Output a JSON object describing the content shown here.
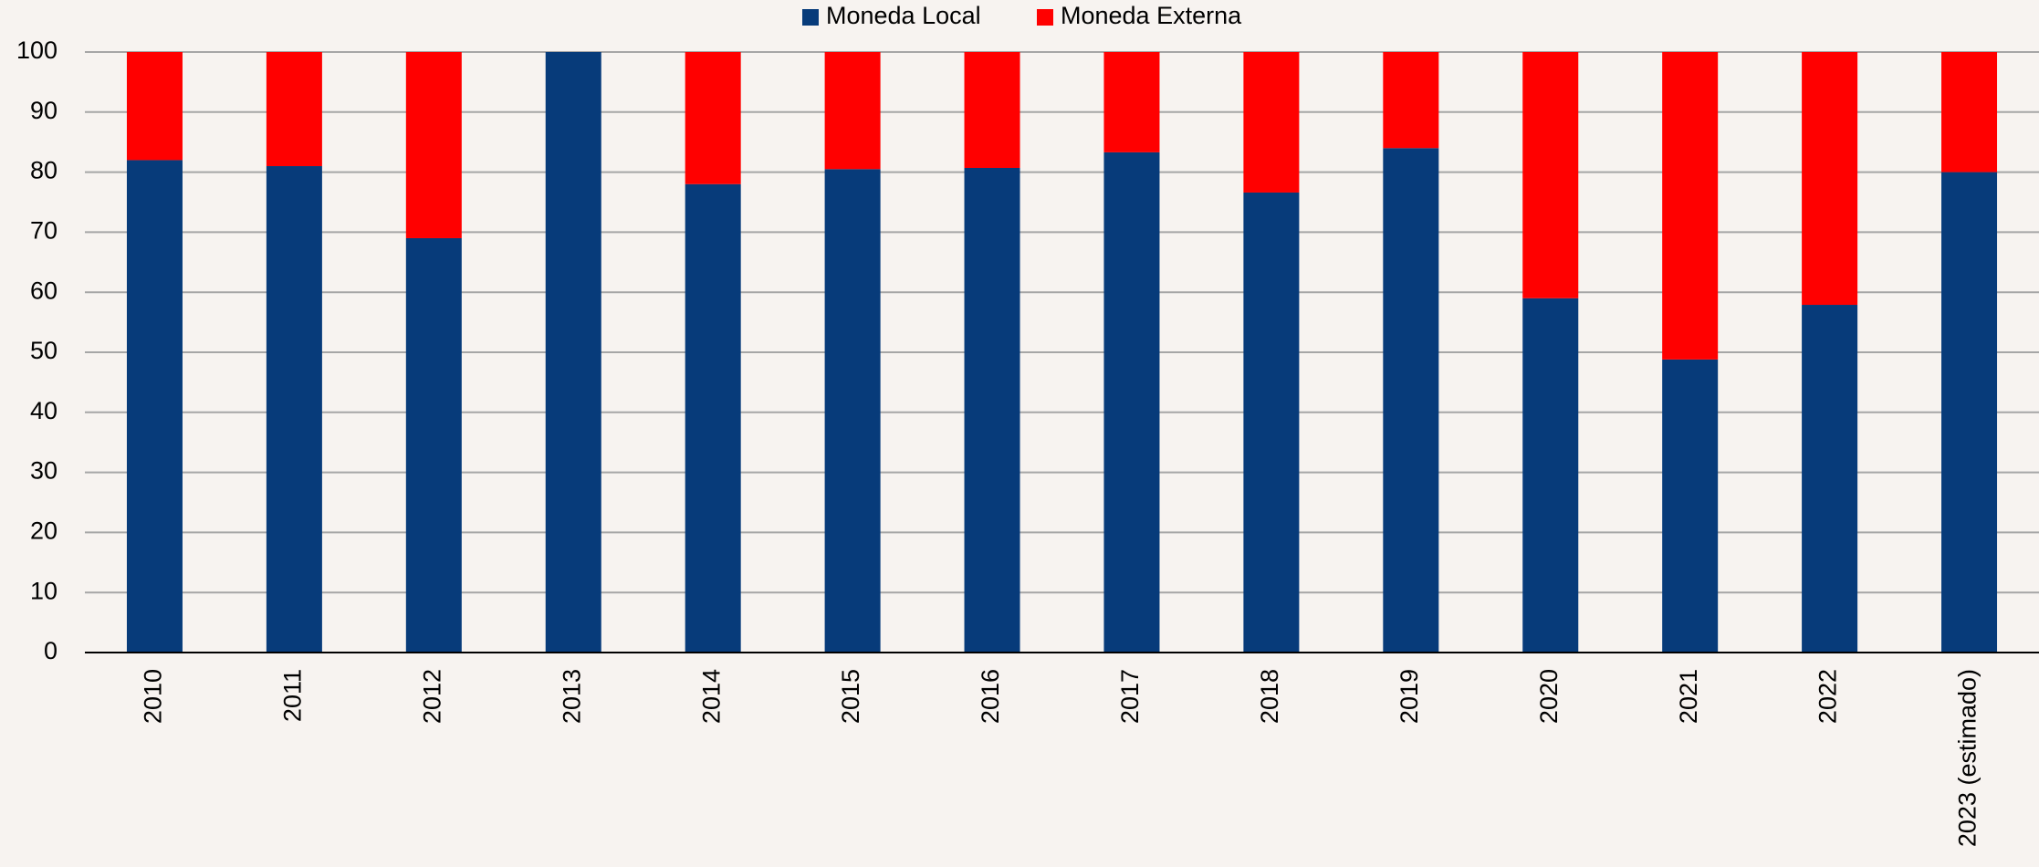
{
  "chart_data": {
    "type": "stacked_bar",
    "categories": [
      "2010",
      "2011",
      "2012",
      "2013",
      "2014",
      "2015",
      "2016",
      "2017",
      "2018",
      "2019",
      "2020",
      "2021",
      "2022",
      "2023 (estimado)"
    ],
    "series": [
      {
        "name": "Moneda Local",
        "color": "#073b7a",
        "values": [
          82,
          81,
          69,
          100,
          78,
          80.5,
          80.7,
          83.3,
          76.6,
          84,
          59,
          48.8,
          57.9,
          80
        ]
      },
      {
        "name": "Moneda Externa",
        "color": "#ff0000",
        "values": [
          18,
          19,
          31,
          0,
          22,
          19.5,
          19.3,
          16.7,
          23.4,
          16,
          41,
          51.2,
          42.1,
          20
        ]
      }
    ],
    "ylim": [
      0,
      100
    ],
    "yticks": [
      0,
      10,
      20,
      30,
      40,
      50,
      60,
      70,
      80,
      90,
      100
    ],
    "grid": true,
    "legend": "top"
  }
}
